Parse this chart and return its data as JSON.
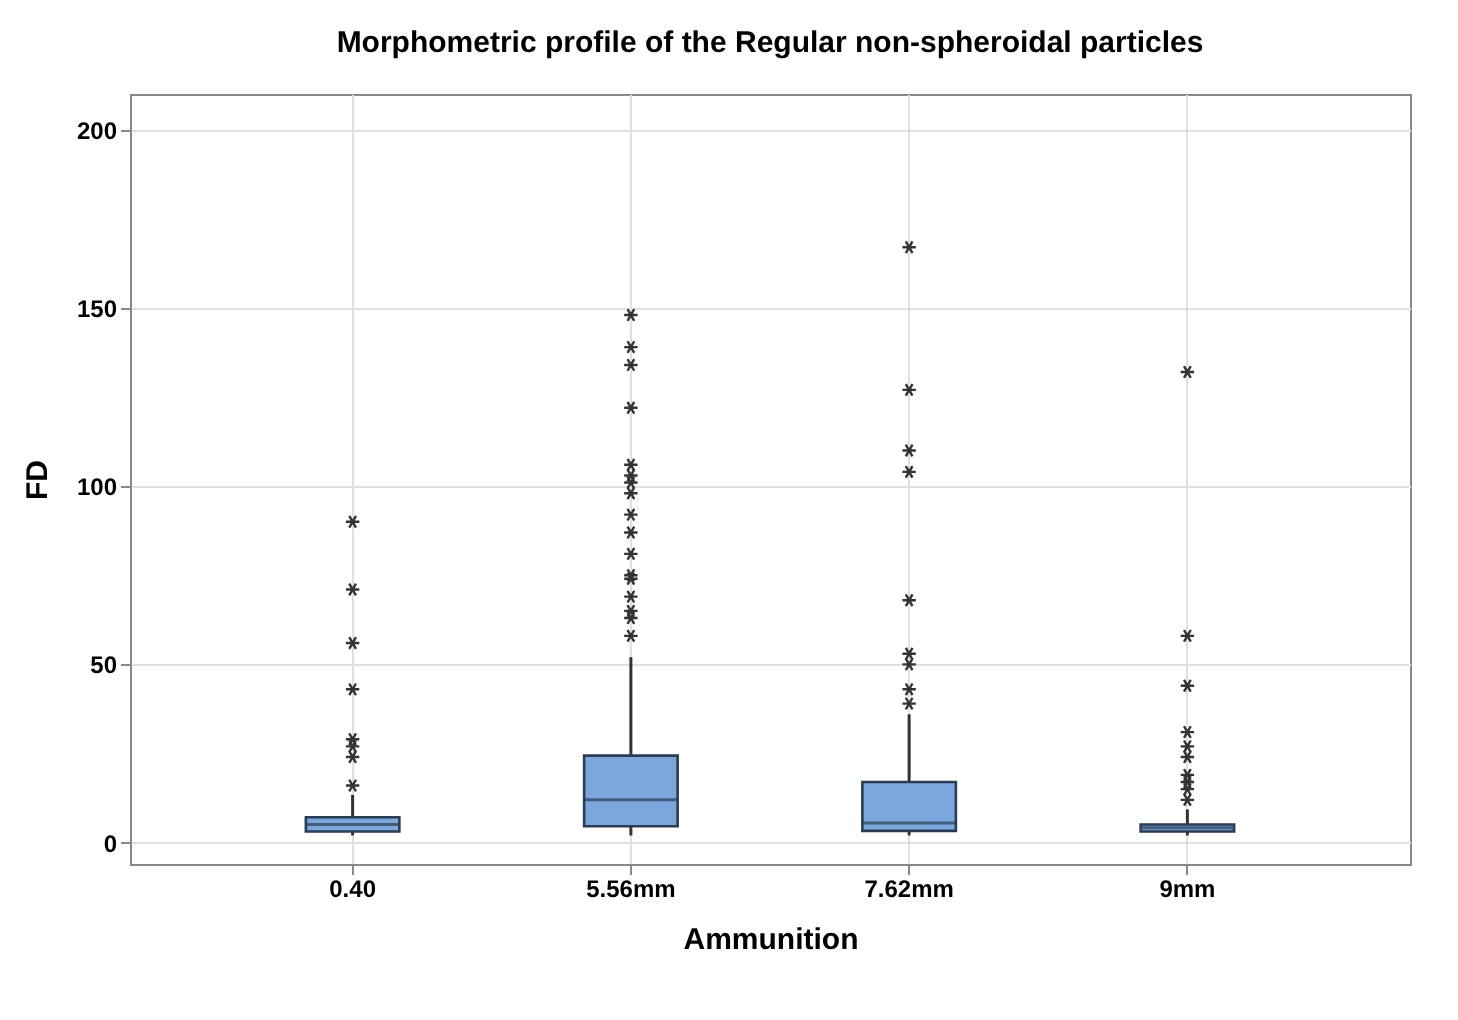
{
  "chart_data": {
    "type": "box",
    "title": "Morphometric profile of the Regular non-spheroidal particles",
    "xlabel": "Ammunition",
    "ylabel": "FD",
    "categories": [
      "0.40",
      "5.56mm",
      "7.62mm",
      "9mm"
    ],
    "color": "#7ba7dd",
    "boxes": [
      {
        "low": 2,
        "q1": 3.1,
        "median": 5.1,
        "q3": 7.1,
        "high": 13.4,
        "outliers": [
          90,
          71,
          56,
          43,
          29,
          27,
          24,
          16
        ]
      },
      {
        "low": 2,
        "q1": 4.6,
        "median": 12,
        "q3": 24.4,
        "high": 52,
        "outliers": [
          148,
          139,
          134,
          122,
          106,
          103,
          101,
          98,
          92,
          87,
          81,
          75,
          74,
          69,
          65,
          63,
          58
        ]
      },
      {
        "low": 2,
        "q1": 3.3,
        "median": 5.5,
        "q3": 17,
        "high": 36,
        "outliers": [
          167,
          127,
          110,
          104,
          68,
          53,
          50,
          43,
          39
        ]
      },
      {
        "low": 2,
        "q1": 3.1,
        "median": 4.2,
        "q3": 5.1,
        "high": 9.3,
        "outliers": [
          132,
          58,
          44,
          31,
          27,
          24,
          19,
          17,
          15,
          12
        ]
      }
    ],
    "ylim": [
      -6,
      210
    ],
    "yticks": [
      0,
      50,
      100,
      150,
      200
    ],
    "grid": true,
    "marker": "star"
  }
}
